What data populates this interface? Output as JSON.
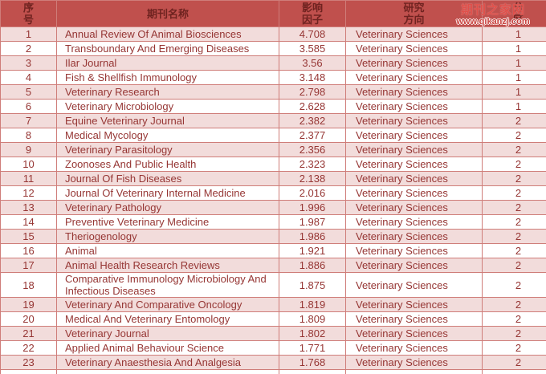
{
  "watermark": {
    "title": "期刊之家网",
    "url": "www.qikanzj.com"
  },
  "colors": {
    "header_bg": "#c0504d",
    "header_text": "#6f2320",
    "row_odd_bg": "#f2dcdb",
    "row_even_bg": "#ffffff",
    "border": "#cf7d79",
    "data_text": "#963634"
  },
  "table": {
    "columns": [
      {
        "id": "no",
        "label": "序\n号"
      },
      {
        "id": "name",
        "label": "期刊名称"
      },
      {
        "id": "if",
        "label": "影响\n因子"
      },
      {
        "id": "field",
        "label": "研究\n方向"
      },
      {
        "id": "zone",
        "label": "分\n区"
      }
    ],
    "rows": [
      {
        "no": "1",
        "name": "Annual Review Of Animal Biosciences",
        "impact": "4.708",
        "field": "Veterinary Sciences",
        "zone": "1"
      },
      {
        "no": "2",
        "name": "Transboundary And Emerging Diseases",
        "impact": "3.585",
        "field": "Veterinary Sciences",
        "zone": "1"
      },
      {
        "no": "3",
        "name": "Ilar Journal",
        "impact": "3.56",
        "field": "Veterinary Sciences",
        "zone": "1"
      },
      {
        "no": "4",
        "name": "Fish & Shellfish Immunology",
        "impact": "3.148",
        "field": "Veterinary Sciences",
        "zone": "1"
      },
      {
        "no": "5",
        "name": "Veterinary Research",
        "impact": "2.798",
        "field": "Veterinary Sciences",
        "zone": "1"
      },
      {
        "no": "6",
        "name": "Veterinary Microbiology",
        "impact": "2.628",
        "field": "Veterinary Sciences",
        "zone": "1"
      },
      {
        "no": "7",
        "name": "Equine Veterinary Journal",
        "impact": "2.382",
        "field": "Veterinary Sciences",
        "zone": "2"
      },
      {
        "no": "8",
        "name": "Medical Mycology",
        "impact": "2.377",
        "field": "Veterinary Sciences",
        "zone": "2"
      },
      {
        "no": "9",
        "name": "Veterinary Parasitology",
        "impact": "2.356",
        "field": "Veterinary Sciences",
        "zone": "2"
      },
      {
        "no": "10",
        "name": "Zoonoses And Public Health",
        "impact": "2.323",
        "field": "Veterinary Sciences",
        "zone": "2"
      },
      {
        "no": "11",
        "name": "Journal Of Fish Diseases",
        "impact": "2.138",
        "field": "Veterinary Sciences",
        "zone": "2"
      },
      {
        "no": "12",
        "name": "Journal Of Veterinary Internal Medicine",
        "impact": "2.016",
        "field": "Veterinary Sciences",
        "zone": "2"
      },
      {
        "no": "13",
        "name": "Veterinary Pathology",
        "impact": "1.996",
        "field": "Veterinary Sciences",
        "zone": "2"
      },
      {
        "no": "14",
        "name": "Preventive Veterinary Medicine",
        "impact": "1.987",
        "field": "Veterinary Sciences",
        "zone": "2"
      },
      {
        "no": "15",
        "name": "Theriogenology",
        "impact": "1.986",
        "field": "Veterinary Sciences",
        "zone": "2"
      },
      {
        "no": "16",
        "name": "Animal",
        "impact": "1.921",
        "field": "Veterinary Sciences",
        "zone": "2"
      },
      {
        "no": "17",
        "name": "Animal Health Research Reviews",
        "impact": "1.886",
        "field": "Veterinary Sciences",
        "zone": "2"
      },
      {
        "no": "18",
        "name": "Comparative Immunology Microbiology And  Infectious Diseases",
        "impact": "1.875",
        "field": "Veterinary Sciences",
        "zone": "2"
      },
      {
        "no": "19",
        "name": "Veterinary And Comparative Oncology",
        "impact": "1.819",
        "field": "Veterinary Sciences",
        "zone": "2"
      },
      {
        "no": "20",
        "name": "Medical And Veterinary Entomology",
        "impact": "1.809",
        "field": "Veterinary Sciences",
        "zone": "2"
      },
      {
        "no": "21",
        "name": "Veterinary Journal",
        "impact": "1.802",
        "field": "Veterinary Sciences",
        "zone": "2"
      },
      {
        "no": "22",
        "name": "Applied Animal Behaviour Science",
        "impact": "1.771",
        "field": "Veterinary Sciences",
        "zone": "2"
      },
      {
        "no": "23",
        "name": "Veterinary Anaesthesia And Analgesia",
        "impact": "1.768",
        "field": "Veterinary Sciences",
        "zone": "2"
      }
    ]
  }
}
